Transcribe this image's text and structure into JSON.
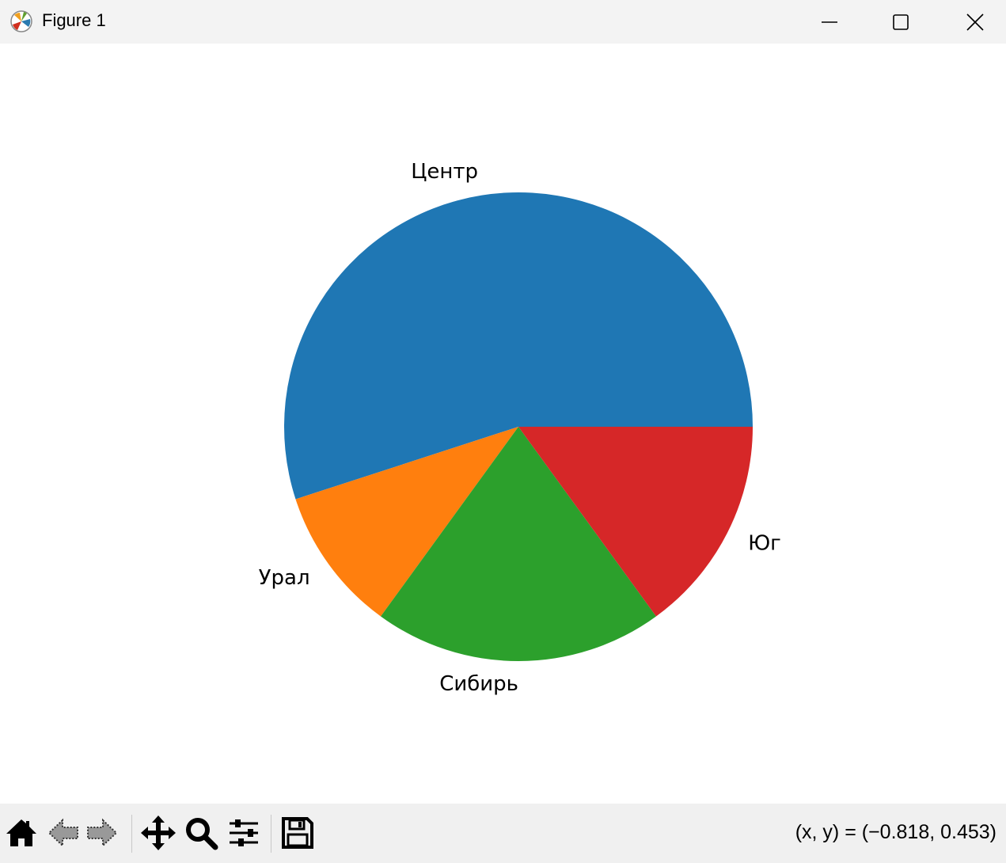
{
  "window": {
    "title": "Figure 1"
  },
  "toolbar": {
    "buttons": [
      {
        "name": "home",
        "icon": "home-icon"
      },
      {
        "name": "back",
        "icon": "arrow-left-icon"
      },
      {
        "name": "forward",
        "icon": "arrow-right-icon"
      },
      {
        "name": "pan",
        "icon": "move-icon"
      },
      {
        "name": "zoom",
        "icon": "magnifier-icon"
      },
      {
        "name": "configure",
        "icon": "sliders-icon"
      },
      {
        "name": "save",
        "icon": "floppy-icon"
      }
    ],
    "coordinates": "(x, y) = (−0.818, 0.453)"
  },
  "chart_data": {
    "type": "pie",
    "labels": [
      "Центр",
      "Урал",
      "Сибирь",
      "Юг"
    ],
    "values": [
      55,
      10,
      20,
      15
    ],
    "colors": [
      "#1f77b4",
      "#ff7f0e",
      "#2ca02c",
      "#d62728"
    ],
    "startangle": 0,
    "direction": "counterclockwise"
  }
}
